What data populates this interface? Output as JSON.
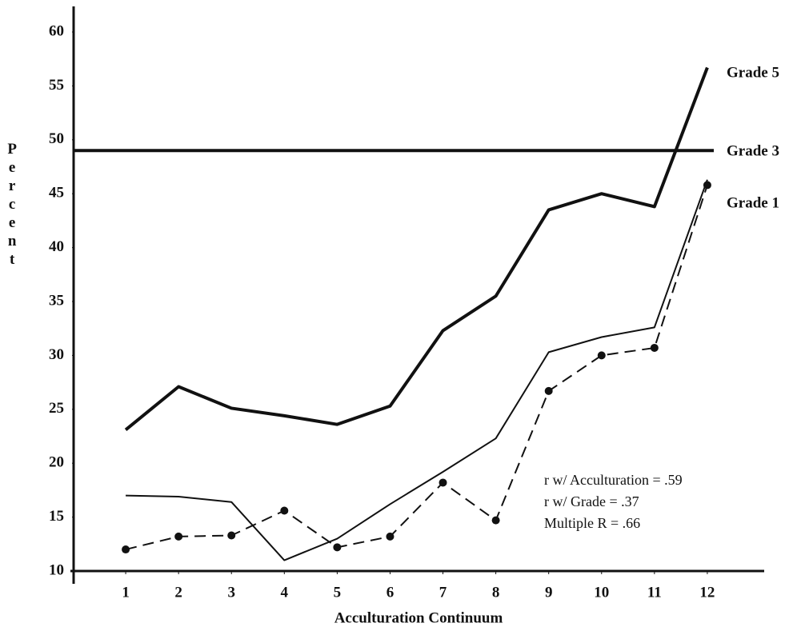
{
  "chart_data": {
    "type": "line",
    "x": [
      1,
      2,
      3,
      4,
      5,
      6,
      7,
      8,
      9,
      10,
      11,
      12
    ],
    "xlim": [
      0,
      13
    ],
    "xticks": [
      1,
      2,
      3,
      4,
      5,
      6,
      7,
      8,
      9,
      10,
      11,
      12
    ],
    "ylim": [
      10,
      60
    ],
    "yticks": [
      10,
      15,
      20,
      25,
      30,
      35,
      40,
      45,
      50,
      55,
      60
    ],
    "xlabel": "Acculturation Continuum",
    "ylabel": "Percent",
    "reference_line": 49,
    "series": [
      {
        "name": "Grade 5",
        "color": "#111111",
        "line_width": 4,
        "dashed": false,
        "markers": false,
        "values": [
          23.1,
          27.1,
          25.1,
          24.4,
          23.6,
          25.3,
          32.3,
          35.5,
          43.5,
          45.0,
          43.8,
          56.7
        ]
      },
      {
        "name": "Grade 3",
        "color": "#111111",
        "line_width": 2,
        "dashed": false,
        "markers": false,
        "values": [
          17.0,
          16.9,
          16.4,
          11.0,
          13.0,
          16.2,
          19.2,
          22.3,
          30.3,
          31.7,
          32.6,
          46.3
        ]
      },
      {
        "name": "Grade 1",
        "color": "#111111",
        "line_width": 2,
        "dashed": true,
        "markers": true,
        "values": [
          12.0,
          13.2,
          13.3,
          15.6,
          12.2,
          13.2,
          18.2,
          14.7,
          26.7,
          30.0,
          30.7,
          45.8
        ]
      }
    ],
    "annotations": [
      "r w/ Acculturation = .59",
      "r w/ Grade = .37",
      "Multiple R = .66"
    ]
  }
}
